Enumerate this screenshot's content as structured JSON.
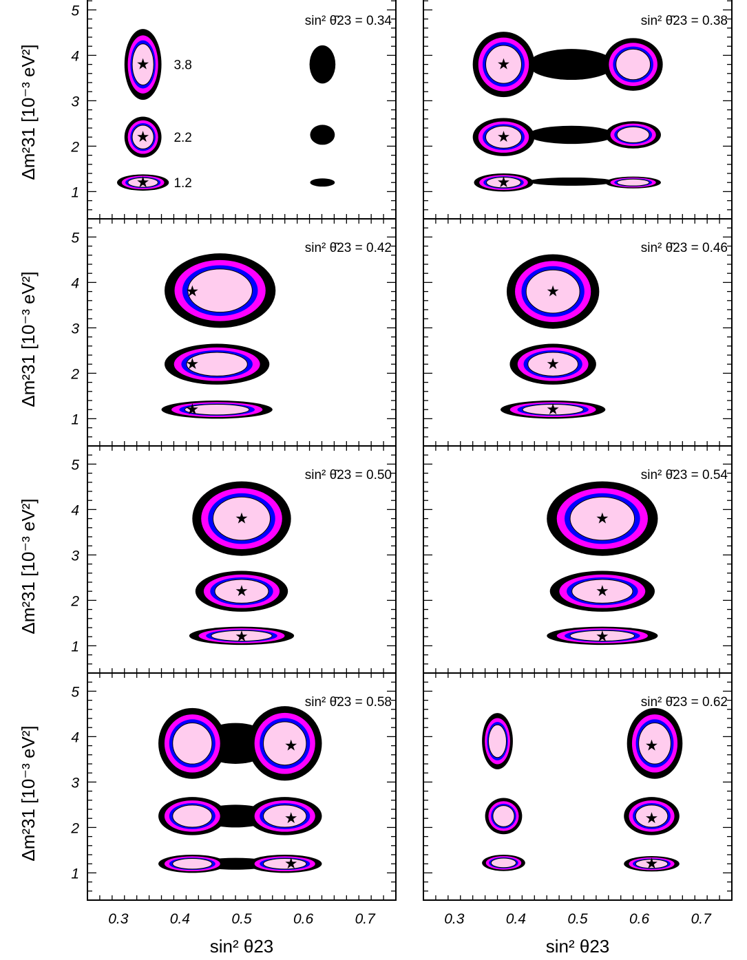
{
  "chart_data": {
    "type": "contour",
    "layout": "4 rows x 2 columns",
    "xlabel": "sin² θ23",
    "ylabel": "Δm²31 [10⁻³ eV²]",
    "xlim": [
      0.25,
      0.75
    ],
    "ylim": [
      0.4,
      5.4
    ],
    "xticks": [
      "0.3",
      "0.4",
      "0.5",
      "0.6",
      "0.7"
    ],
    "yticks": [
      "1",
      "2",
      "3",
      "4",
      "5"
    ],
    "grid": false,
    "mass_labels": [
      "3.8",
      "2.2",
      "1.2"
    ],
    "true_dm2": [
      3.8,
      2.2,
      1.2
    ],
    "contour_colors": {
      "outer": "#000000",
      "third": "#ff00ff",
      "second": "#0000ff",
      "inner": "#ffccee"
    },
    "panels": [
      {
        "label": "sin² θ̄23 = 0.34",
        "true_s23": 0.34,
        "show_mass_labels": true,
        "regions": [
          {
            "s": 0.34,
            "dm2": 3.8,
            "w": 0.03,
            "h": 0.78
          },
          {
            "s": 0.34,
            "dm2": 2.2,
            "w": 0.03,
            "h": 0.45
          },
          {
            "s": 0.34,
            "dm2": 1.2,
            "w": 0.042,
            "h": 0.18
          },
          {
            "s": 0.631,
            "dm2": 3.8,
            "w": 0.021,
            "h": 0.42,
            "outer_only": true
          },
          {
            "s": 0.631,
            "dm2": 2.25,
            "w": 0.02,
            "h": 0.22,
            "outer_only": true
          },
          {
            "s": 0.631,
            "dm2": 1.2,
            "w": 0.02,
            "h": 0.09,
            "outer_only": true
          }
        ]
      },
      {
        "label": "sin² θ̄23 = 0.38",
        "true_s23": 0.38,
        "regions": [
          {
            "s": 0.38,
            "dm2": 3.8,
            "w": 0.05,
            "h": 0.72
          },
          {
            "s": 0.59,
            "dm2": 3.8,
            "w": 0.048,
            "h": 0.58
          },
          {
            "s": 0.49,
            "dm2": 3.8,
            "w": 0.07,
            "h": 0.34,
            "outer_only": true
          },
          {
            "s": 0.38,
            "dm2": 2.2,
            "w": 0.05,
            "h": 0.42
          },
          {
            "s": 0.59,
            "dm2": 2.25,
            "w": 0.045,
            "h": 0.3
          },
          {
            "s": 0.49,
            "dm2": 2.25,
            "w": 0.07,
            "h": 0.2,
            "outer_only": true
          },
          {
            "s": 0.38,
            "dm2": 1.2,
            "w": 0.048,
            "h": 0.2
          },
          {
            "s": 0.59,
            "dm2": 1.2,
            "w": 0.045,
            "h": 0.13
          },
          {
            "s": 0.49,
            "dm2": 1.22,
            "w": 0.07,
            "h": 0.09,
            "outer_only": true
          }
        ]
      },
      {
        "label": "sin² θ̄23 = 0.42",
        "true_s23": 0.42,
        "regions": [
          {
            "s": 0.465,
            "dm2": 3.82,
            "w": 0.09,
            "h": 0.82
          },
          {
            "s": 0.46,
            "dm2": 2.2,
            "w": 0.085,
            "h": 0.45
          },
          {
            "s": 0.46,
            "dm2": 1.2,
            "w": 0.09,
            "h": 0.2
          }
        ]
      },
      {
        "label": "sin² θ̄23 = 0.46",
        "true_s23": 0.46,
        "regions": [
          {
            "s": 0.46,
            "dm2": 3.8,
            "w": 0.075,
            "h": 0.82
          },
          {
            "s": 0.46,
            "dm2": 2.2,
            "w": 0.07,
            "h": 0.45
          },
          {
            "s": 0.46,
            "dm2": 1.2,
            "w": 0.085,
            "h": 0.2
          }
        ]
      },
      {
        "label": "sin² θ̄23 = 0.50",
        "true_s23": 0.5,
        "regions": [
          {
            "s": 0.5,
            "dm2": 3.8,
            "w": 0.08,
            "h": 0.82
          },
          {
            "s": 0.5,
            "dm2": 2.2,
            "w": 0.075,
            "h": 0.45
          },
          {
            "s": 0.5,
            "dm2": 1.22,
            "w": 0.085,
            "h": 0.2
          }
        ]
      },
      {
        "label": "sin² θ̄23 = 0.54",
        "true_s23": 0.54,
        "regions": [
          {
            "s": 0.54,
            "dm2": 3.8,
            "w": 0.09,
            "h": 0.82
          },
          {
            "s": 0.54,
            "dm2": 2.2,
            "w": 0.085,
            "h": 0.45
          },
          {
            "s": 0.54,
            "dm2": 1.22,
            "w": 0.09,
            "h": 0.2
          }
        ]
      },
      {
        "label": "sin² θ̄23 = 0.58",
        "true_s23": 0.58,
        "regions": [
          {
            "s": 0.42,
            "dm2": 3.85,
            "w": 0.055,
            "h": 0.78
          },
          {
            "s": 0.57,
            "dm2": 3.85,
            "w": 0.06,
            "h": 0.82
          },
          {
            "s": 0.49,
            "dm2": 3.85,
            "w": 0.06,
            "h": 0.45,
            "outer_only": true
          },
          {
            "s": 0.42,
            "dm2": 2.25,
            "w": 0.055,
            "h": 0.42
          },
          {
            "s": 0.57,
            "dm2": 2.25,
            "w": 0.06,
            "h": 0.42
          },
          {
            "s": 0.49,
            "dm2": 2.25,
            "w": 0.06,
            "h": 0.25,
            "outer_only": true
          },
          {
            "s": 0.42,
            "dm2": 1.2,
            "w": 0.055,
            "h": 0.2
          },
          {
            "s": 0.57,
            "dm2": 1.2,
            "w": 0.06,
            "h": 0.2
          },
          {
            "s": 0.49,
            "dm2": 1.2,
            "w": 0.06,
            "h": 0.13,
            "outer_only": true
          }
        ]
      },
      {
        "label": "sin² θ̄23 = 0.62",
        "true_s23": 0.62,
        "regions": [
          {
            "s": 0.37,
            "dm2": 3.9,
            "w": 0.025,
            "h": 0.62
          },
          {
            "s": 0.625,
            "dm2": 3.85,
            "w": 0.045,
            "h": 0.78
          },
          {
            "s": 0.38,
            "dm2": 2.25,
            "w": 0.03,
            "h": 0.4
          },
          {
            "s": 0.62,
            "dm2": 2.25,
            "w": 0.045,
            "h": 0.42
          },
          {
            "s": 0.38,
            "dm2": 1.22,
            "w": 0.035,
            "h": 0.18
          },
          {
            "s": 0.62,
            "dm2": 1.2,
            "w": 0.045,
            "h": 0.17
          }
        ]
      }
    ]
  }
}
